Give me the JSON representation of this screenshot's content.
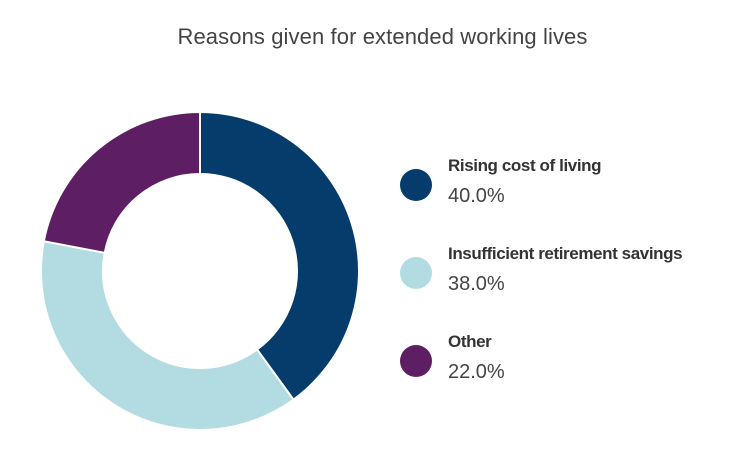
{
  "chart_data": {
    "type": "pie",
    "title": "Reasons given for extended working lives",
    "donut": true,
    "legend_position": "right",
    "slices": [
      {
        "label": "Rising cost of living",
        "value": 40.0,
        "display": "40.0%",
        "color": "#063c6b"
      },
      {
        "label": "Insufficient retirement savings",
        "value": 38.0,
        "display": "38.0%",
        "color": "#b2dce2"
      },
      {
        "label": "Other",
        "value": 22.0,
        "display": "22.0%",
        "color": "#5e1e63"
      }
    ]
  }
}
